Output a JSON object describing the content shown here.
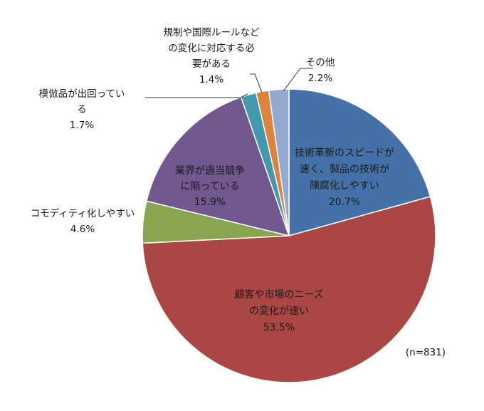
{
  "chart_data": {
    "type": "pie",
    "n_label": "(n=831)",
    "start_angle_deg": 0,
    "direction": "clockwise",
    "slices": [
      {
        "name": "技術革新のスピードが速く、製品の技術が陳腐化しやすい",
        "lines": [
          "技術革新のスピードが",
          "速く、製品の技術が",
          "陳腐化しやすい"
        ],
        "value": 20.7,
        "pct": "20.7%",
        "color": "#4472A8",
        "inside": true
      },
      {
        "name": "顧客や市場のニーズの変化が速い",
        "lines": [
          "顧客や市場のニーズ",
          "の変化が速い"
        ],
        "value": 53.5,
        "pct": "53.5%",
        "color": "#AA4643",
        "inside": true
      },
      {
        "name": "コモディティ化しやすい",
        "lines": [
          "コモディティ化しやすい"
        ],
        "value": 4.6,
        "pct": "4.6%",
        "color": "#89A54E",
        "inside": false
      },
      {
        "name": "業界が過当競争に陥っている",
        "lines": [
          "業界が過当競争",
          "に陥っている"
        ],
        "value": 15.9,
        "pct": "15.9%",
        "color": "#71588F",
        "inside": true
      },
      {
        "name": "模倣品が出回っている",
        "lines": [
          "模倣品が出回ってい",
          "る"
        ],
        "value": 1.7,
        "pct": "1.7%",
        "color": "#4198AF",
        "inside": false
      },
      {
        "name": "規制や国際ルールなどの変化に対応する必要がある",
        "lines": [
          "規制や国際ルールなど",
          "の変化に対応する必",
          "要がある"
        ],
        "value": 1.4,
        "pct": "1.4%",
        "color": "#DB843D",
        "inside": false
      },
      {
        "name": "その他",
        "lines": [
          "その他"
        ],
        "value": 2.2,
        "pct": "2.2%",
        "color": "#93A9CF",
        "inside": false
      }
    ]
  }
}
